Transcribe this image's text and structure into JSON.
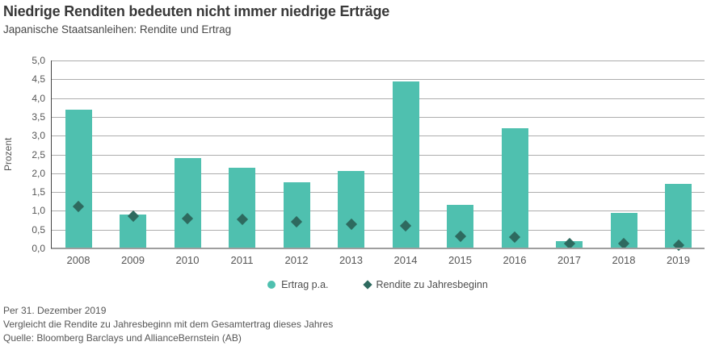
{
  "header": {
    "title": "Niedrige Renditen bedeuten nicht immer niedrige Erträge",
    "subtitle": "Japanische Staatsanleihen: Rendite und Ertrag"
  },
  "chart_data": {
    "type": "bar",
    "title": "Niedrige Renditen bedeuten nicht immer niedrige Erträge",
    "subtitle": "Japanische Staatsanleihen: Rendite und Ertrag",
    "categories": [
      "2008",
      "2009",
      "2010",
      "2011",
      "2012",
      "2013",
      "2014",
      "2015",
      "2016",
      "2017",
      "2018",
      "2019"
    ],
    "series": [
      {
        "name": "Ertrag p.a.",
        "type": "bar",
        "marker": "circle",
        "color": "#4FC0AF",
        "values": [
          3.7,
          0.9,
          2.4,
          2.15,
          1.75,
          2.05,
          4.45,
          1.15,
          3.2,
          0.2,
          0.95,
          1.72
        ]
      },
      {
        "name": "Rendite zu Jahresbeginn",
        "type": "scatter",
        "marker": "diamond",
        "color": "#2E6A5F",
        "values": [
          1.12,
          0.85,
          0.8,
          0.77,
          0.7,
          0.64,
          0.6,
          0.32,
          0.3,
          0.12,
          0.13,
          0.08
        ]
      }
    ],
    "xlabel": "",
    "ylabel": "Prozent",
    "ylim": [
      0,
      5
    ],
    "yticks": [
      0,
      0.5,
      1,
      1.5,
      2,
      2.5,
      3,
      3.5,
      4,
      4.5,
      5
    ],
    "ytick_labels": [
      "0,0",
      "0,5",
      "1,0",
      "1,5",
      "2,0",
      "2,5",
      "3,0",
      "3,5",
      "4,0",
      "4,5",
      "5,0"
    ],
    "grid": true,
    "legend_position": "bottom"
  },
  "footer": {
    "as_of": "Per 31. Dezember 2019",
    "note": "Vergleicht die Rendite zu Jahresbeginn mit dem Gesamtertrag dieses Jahres",
    "source": "Quelle: Bloomberg Barclays und AllianceBernstein (AB)"
  },
  "colors": {
    "bar": "#4FC0AF",
    "diamond": "#2E6A5F",
    "gridline": "#ADADAD",
    "axis": "#9E9E9E",
    "text": "#565656",
    "title": "#383838"
  }
}
